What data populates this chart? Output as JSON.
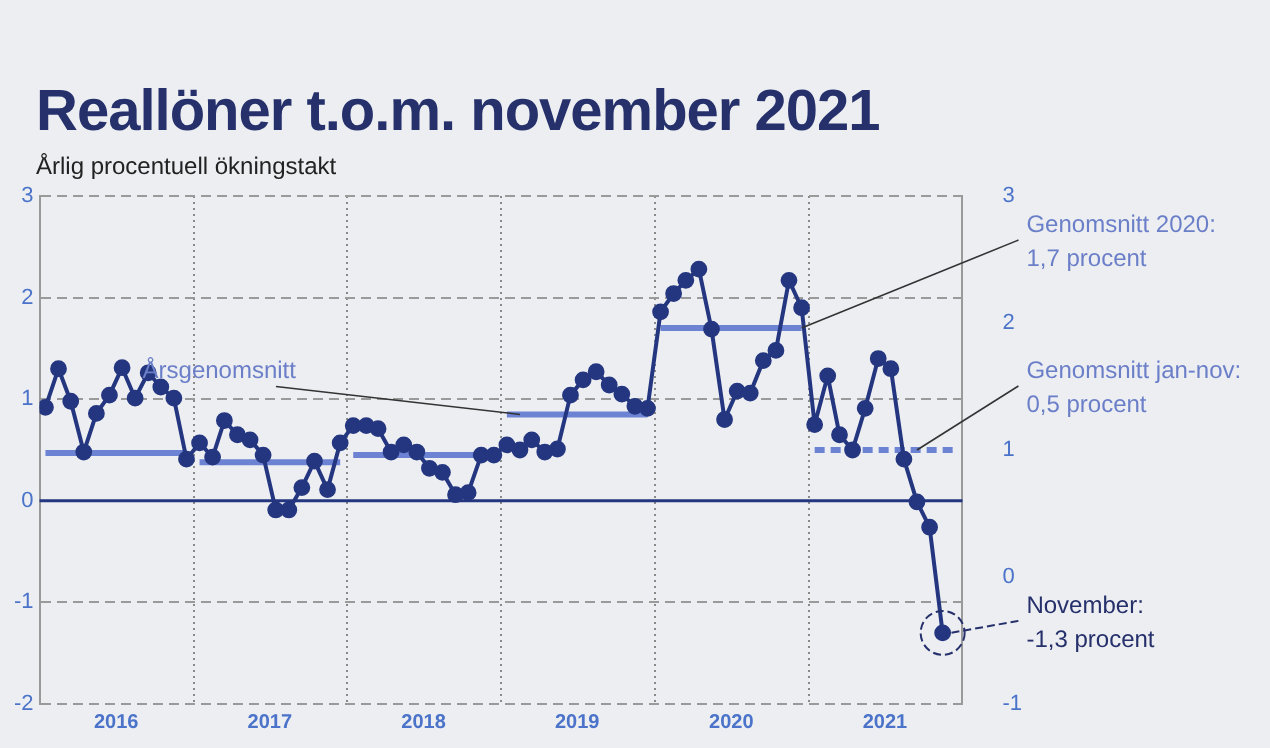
{
  "chart_data": {
    "type": "line",
    "title": "Reallöner t.o.m. november 2021",
    "subtitle": "Årlig procentuell ökningstakt",
    "x": [
      "2016-01-15",
      "2016-02-15",
      "2016-03-15",
      "2016-04-15",
      "2016-05-15",
      "2016-06-15",
      "2016-07-15",
      "2016-08-15",
      "2016-09-15",
      "2016-10-15",
      "2016-11-15",
      "2016-12-15",
      "2017-01-15",
      "2017-02-15",
      "2017-03-15",
      "2017-04-15",
      "2017-05-15",
      "2017-06-15",
      "2017-07-15",
      "2017-08-15",
      "2017-09-15",
      "2017-10-15",
      "2017-11-15",
      "2017-12-15",
      "2018-01-15",
      "2018-02-15",
      "2018-03-15",
      "2018-04-15",
      "2018-05-15",
      "2018-06-15",
      "2018-07-15",
      "2018-08-15",
      "2018-09-15",
      "2018-10-15",
      "2018-11-15",
      "2018-12-15",
      "2019-01-15",
      "2019-02-15",
      "2019-03-15",
      "2019-04-15",
      "2019-05-15",
      "2019-06-15",
      "2019-07-15",
      "2019-08-15",
      "2019-09-15",
      "2019-10-15",
      "2019-11-15",
      "2019-12-15",
      "2020-01-15",
      "2020-02-15",
      "2020-03-15",
      "2020-04-15",
      "2020-05-15",
      "2020-06-15",
      "2020-07-15",
      "2020-08-15",
      "2020-09-15",
      "2020-10-15",
      "2020-11-15",
      "2020-12-15",
      "2021-01-15",
      "2021-02-15",
      "2021-03-15",
      "2021-04-15",
      "2021-05-15",
      "2021-06-15",
      "2021-07-15",
      "2021-08-15",
      "2021-09-15",
      "2021-10-15",
      "2021-11-15"
    ],
    "series": [
      {
        "type": "line",
        "color": "#24367f",
        "marker": "circle",
        "values": [
          0.92,
          1.3,
          0.98,
          0.48,
          0.86,
          1.04,
          1.31,
          1.01,
          1.26,
          1.12,
          1.01,
          0.41,
          0.57,
          0.43,
          0.79,
          0.65,
          0.6,
          0.45,
          -0.09,
          -0.09,
          0.13,
          0.39,
          0.11,
          0.57,
          0.74,
          0.74,
          0.71,
          0.48,
          0.55,
          0.48,
          0.32,
          0.28,
          0.06,
          0.08,
          0.45,
          0.45,
          0.55,
          0.5,
          0.6,
          0.48,
          0.51,
          1.04,
          1.19,
          1.27,
          1.14,
          1.05,
          0.93,
          0.91,
          1.86,
          2.04,
          2.17,
          2.28,
          1.69,
          0.8,
          1.08,
          1.06,
          1.38,
          1.48,
          2.17,
          1.9,
          0.75,
          1.23,
          0.65,
          0.5,
          0.91,
          1.4,
          1.3,
          0.41,
          -0.01,
          -0.26,
          -1.3
        ]
      },
      {
        "type": "line",
        "color": "#6c83d4",
        "marker": "none",
        "x": [
          "2016-01-15",
          "2016-12-15"
        ],
        "values": [
          0.47,
          0.47
        ]
      },
      {
        "type": "line",
        "color": "#6c83d4",
        "marker": "none",
        "x": [
          "2017-01-15",
          "2017-12-15"
        ],
        "values": [
          0.38,
          0.38
        ]
      },
      {
        "type": "line",
        "color": "#6c83d4",
        "marker": "none",
        "x": [
          "2018-01-15",
          "2018-12-15"
        ],
        "values": [
          0.45,
          0.45
        ]
      },
      {
        "type": "line",
        "color": "#6c83d4",
        "marker": "none",
        "x": [
          "2019-01-15",
          "2019-12-15"
        ],
        "values": [
          0.85,
          0.85
        ]
      },
      {
        "type": "line",
        "color": "#6c83d4",
        "marker": "none",
        "x": [
          "2020-01-15",
          "2020-12-15"
        ],
        "values": [
          1.7,
          1.7
        ]
      },
      {
        "type": "line",
        "color": "#6c83d4",
        "marker": "none",
        "line_style": "dashed",
        "x": [
          "2021-01-15",
          "2021-12-15"
        ],
        "values": [
          0.5,
          0.5
        ]
      }
    ],
    "xlim": [
      "2016-01-01",
      "2022-01-01"
    ],
    "xticks": [
      {
        "value": "2016-01-01",
        "label": null
      },
      {
        "value": "2016-07-01",
        "label": "2016"
      },
      {
        "value": "2017-01-01",
        "label": null
      },
      {
        "value": "2017-07-01",
        "label": "2017"
      },
      {
        "value": "2018-01-01",
        "label": null
      },
      {
        "value": "2018-07-01",
        "label": "2018"
      },
      {
        "value": "2019-01-01",
        "label": null
      },
      {
        "value": "2019-07-01",
        "label": "2019"
      },
      {
        "value": "2020-01-01",
        "label": null
      },
      {
        "value": "2020-07-01",
        "label": "2020"
      },
      {
        "value": "2021-01-01",
        "label": null
      },
      {
        "value": "2021-07-01",
        "label": "2021"
      },
      {
        "value": "2022-01-01",
        "label": null
      }
    ],
    "ylim": [
      -2,
      3
    ],
    "yticks": [
      -2,
      -1,
      0,
      1,
      2,
      3
    ],
    "y2lim": [
      -1,
      3
    ],
    "y2ticks": [
      -1,
      0,
      1,
      2,
      3
    ],
    "grid": true,
    "legend": false,
    "ref_lines": [
      {
        "axis": "y",
        "value": 0,
        "color": "#24367f"
      }
    ],
    "annotations": [
      {
        "text": "Årsgenomsnitt",
        "x": "2019-02-15",
        "y": 0.85
      },
      {
        "text": "Genomsnitt 2020:\n1,7 procent",
        "x": "2020-12-15",
        "y": 1.7
      },
      {
        "text": "Genomsnitt jan-nov:\n0,5 procent",
        "x": "2021-09-15",
        "y": 0.5
      },
      {
        "text": "November:\n-1,3 procent",
        "x": "2021-11-15",
        "y": -1.3
      }
    ]
  }
}
